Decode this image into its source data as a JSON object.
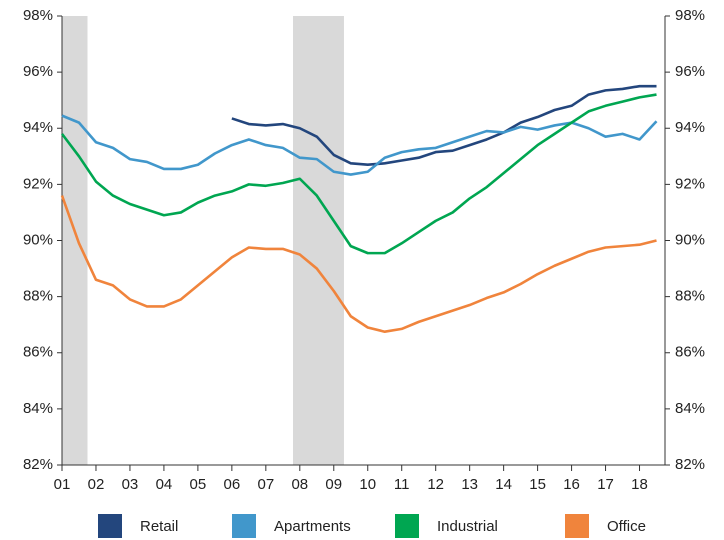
{
  "chart_data": {
    "type": "line",
    "x": [
      1,
      1.5,
      2,
      2.5,
      3,
      3.5,
      4,
      4.5,
      5,
      5.5,
      6,
      6.5,
      7,
      7.5,
      8,
      8.5,
      9,
      9.5,
      10,
      10.5,
      11,
      11.5,
      12,
      12.5,
      13,
      13.5,
      14,
      14.5,
      15,
      15.5,
      16,
      16.5,
      17,
      17.5,
      18,
      18.5
    ],
    "series": [
      {
        "name": "Retail",
        "color": "#23467d",
        "values": [
          null,
          null,
          null,
          null,
          null,
          null,
          null,
          null,
          null,
          null,
          94.35,
          94.15,
          94.1,
          94.15,
          94.0,
          93.7,
          93.05,
          92.75,
          92.7,
          92.75,
          92.85,
          92.95,
          93.15,
          93.2,
          93.4,
          93.6,
          93.85,
          94.2,
          94.4,
          94.65,
          94.8,
          95.2,
          95.35,
          95.4,
          95.5,
          95.5
        ]
      },
      {
        "name": "Apartments",
        "color": "#4197cb",
        "values": [
          94.45,
          94.2,
          93.5,
          93.3,
          92.9,
          92.8,
          92.55,
          92.55,
          92.7,
          93.1,
          93.4,
          93.6,
          93.4,
          93.3,
          92.95,
          92.9,
          92.45,
          92.35,
          92.45,
          92.95,
          93.15,
          93.25,
          93.3,
          93.5,
          93.7,
          93.9,
          93.85,
          94.05,
          93.95,
          94.1,
          94.2,
          94.0,
          93.7,
          93.8,
          93.6,
          94.25
        ]
      },
      {
        "name": "Industrial",
        "color": "#00a651",
        "values": [
          93.8,
          93.0,
          92.1,
          91.6,
          91.3,
          91.1,
          90.9,
          91.0,
          91.35,
          91.6,
          91.75,
          92.0,
          91.95,
          92.05,
          92.2,
          91.6,
          90.7,
          89.8,
          89.55,
          89.55,
          89.9,
          90.3,
          90.7,
          91.0,
          91.5,
          91.9,
          92.4,
          92.9,
          93.4,
          93.8,
          94.2,
          94.6,
          94.8,
          94.95,
          95.1,
          95.2
        ]
      },
      {
        "name": "Office",
        "color": "#f0843c",
        "values": [
          91.6,
          89.9,
          88.6,
          88.4,
          87.9,
          87.65,
          87.65,
          87.9,
          88.4,
          88.9,
          89.4,
          89.75,
          89.7,
          89.7,
          89.5,
          89.0,
          88.2,
          87.3,
          86.9,
          86.75,
          86.85,
          87.1,
          87.3,
          87.5,
          87.7,
          87.95,
          88.15,
          88.45,
          88.8,
          89.1,
          89.35,
          89.6,
          89.75,
          89.8,
          89.85,
          90.0
        ]
      }
    ],
    "shaded_ranges": [
      [
        1,
        1.75
      ],
      [
        7.8,
        9.3
      ]
    ],
    "shade_color": "#d9d9d9",
    "xlim": [
      1,
      18.75
    ],
    "xticks": [
      {
        "value": 1,
        "label": "01"
      },
      {
        "value": 2,
        "label": "02"
      },
      {
        "value": 3,
        "label": "03"
      },
      {
        "value": 4,
        "label": "04"
      },
      {
        "value": 5,
        "label": "05"
      },
      {
        "value": 6,
        "label": "06"
      },
      {
        "value": 7,
        "label": "07"
      },
      {
        "value": 8,
        "label": "08"
      },
      {
        "value": 9,
        "label": "09"
      },
      {
        "value": 10,
        "label": "10"
      },
      {
        "value": 11,
        "label": "11"
      },
      {
        "value": 12,
        "label": "12"
      },
      {
        "value": 13,
        "label": "13"
      },
      {
        "value": 14,
        "label": "14"
      },
      {
        "value": 15,
        "label": "15"
      },
      {
        "value": 16,
        "label": "16"
      },
      {
        "value": 17,
        "label": "17"
      },
      {
        "value": 18,
        "label": "18"
      }
    ],
    "ylim": [
      82,
      98
    ],
    "yticks": [
      {
        "value": 82,
        "label": "82%"
      },
      {
        "value": 84,
        "label": "84%"
      },
      {
        "value": 86,
        "label": "86%"
      },
      {
        "value": 88,
        "label": "88%"
      },
      {
        "value": 90,
        "label": "90%"
      },
      {
        "value": 92,
        "label": "92%"
      },
      {
        "value": 94,
        "label": "94%"
      },
      {
        "value": 96,
        "label": "96%"
      },
      {
        "value": 98,
        "label": "98%"
      }
    ],
    "y2lim": [
      82,
      98
    ],
    "y2ticks": [
      {
        "value": 82,
        "label": "82%"
      },
      {
        "value": 84,
        "label": "84%"
      },
      {
        "value": 86,
        "label": "86%"
      },
      {
        "value": 88,
        "label": "88%"
      },
      {
        "value": 90,
        "label": "90%"
      },
      {
        "value": 92,
        "label": "92%"
      },
      {
        "value": 94,
        "label": "94%"
      },
      {
        "value": 96,
        "label": "96%"
      },
      {
        "value": 98,
        "label": "98%"
      }
    ],
    "grid": false,
    "legend": "bottom"
  }
}
